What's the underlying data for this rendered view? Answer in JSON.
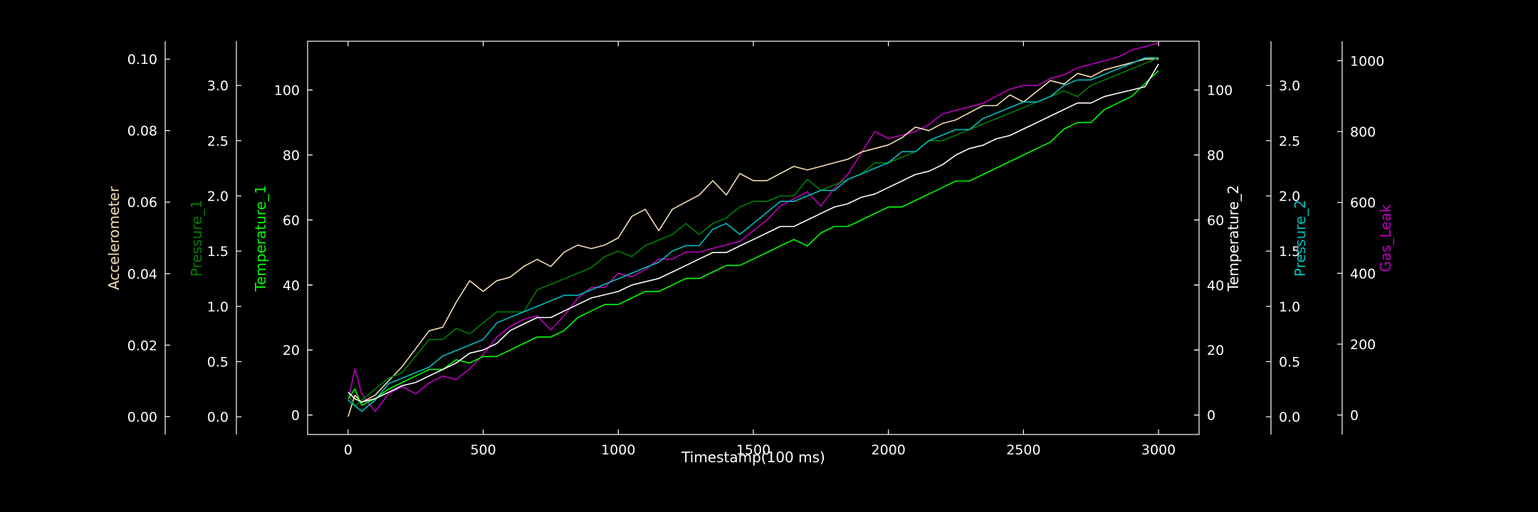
{
  "chart_data": {
    "type": "line",
    "title": "",
    "xlabel": "Timestamp(100 ms)",
    "xlim": [
      -150,
      3150
    ],
    "xticks": [
      0,
      500,
      1000,
      1500,
      2000,
      2500,
      3000
    ],
    "grid": false,
    "legend": "none",
    "background": "#000000",
    "axes": [
      {
        "id": "accel",
        "label": "Accelerometer",
        "side": "left",
        "color": "#f5deb3",
        "ylim": [
          -0.005,
          0.105
        ],
        "ticks": [
          0.0,
          0.02,
          0.04,
          0.06,
          0.08,
          0.1
        ],
        "tick_labels": [
          "0.00",
          "0.02",
          "0.04",
          "0.06",
          "0.08",
          "0.10"
        ]
      },
      {
        "id": "press1",
        "label": "Pressure_1",
        "side": "left",
        "color": "#008000",
        "ylim": [
          -0.16,
          3.4
        ],
        "ticks": [
          0.0,
          0.5,
          1.0,
          1.5,
          2.0,
          2.5,
          3.0
        ],
        "tick_labels": [
          "0.0",
          "0.5",
          "1.0",
          "1.5",
          "2.0",
          "2.5",
          "3.0"
        ]
      },
      {
        "id": "temp1",
        "label": "Temperature_1",
        "side": "left",
        "color": "#00ff00",
        "ylim": [
          -6,
          115
        ],
        "ticks": [
          0,
          20,
          40,
          60,
          80,
          100
        ],
        "tick_labels": [
          "0",
          "20",
          "40",
          "60",
          "80",
          "100"
        ]
      },
      {
        "id": "temp2",
        "label": "Temperature_2",
        "side": "right",
        "color": "#ffffff",
        "ylim": [
          -6,
          115
        ],
        "ticks": [
          0,
          20,
          40,
          60,
          80,
          100
        ],
        "tick_labels": [
          "0",
          "20",
          "40",
          "60",
          "80",
          "100"
        ]
      },
      {
        "id": "press2",
        "label": "Pressure_2",
        "side": "right",
        "color": "#00bfbf",
        "ylim": [
          -0.16,
          3.4
        ],
        "ticks": [
          0.0,
          0.5,
          1.0,
          1.5,
          2.0,
          2.5,
          3.0
        ],
        "tick_labels": [
          "0.0",
          "0.5",
          "1.0",
          "1.5",
          "2.0",
          "2.5",
          "3.0"
        ]
      },
      {
        "id": "gas",
        "label": "Gas_Leak",
        "side": "right",
        "color": "#bf00bf",
        "ylim": [
          -55,
          1055
        ],
        "ticks": [
          0,
          200,
          400,
          600,
          800,
          1000
        ],
        "tick_labels": [
          "0",
          "200",
          "400",
          "600",
          "800",
          "1000"
        ]
      }
    ],
    "series": [
      {
        "axis": "gas",
        "color": "#bf00bf",
        "x": [
          0,
          25,
          50,
          100,
          150,
          200,
          250,
          300,
          350,
          400,
          450,
          500,
          550,
          600,
          650,
          700,
          750,
          800,
          850,
          900,
          950,
          1000,
          1050,
          1100,
          1150,
          1200,
          1250,
          1300,
          1350,
          1400,
          1450,
          1500,
          1550,
          1600,
          1650,
          1700,
          1750,
          1800,
          1850,
          1900,
          1950,
          2000,
          2050,
          2100,
          2150,
          2200,
          2250,
          2300,
          2350,
          2400,
          2450,
          2500,
          2550,
          2600,
          2650,
          2700,
          2750,
          2800,
          2850,
          2900,
          2950,
          3000
        ],
        "y": [
          40,
          130,
          60,
          10,
          60,
          80,
          60,
          90,
          110,
          100,
          130,
          170,
          220,
          250,
          270,
          280,
          240,
          280,
          330,
          360,
          360,
          400,
          390,
          410,
          440,
          440,
          460,
          460,
          470,
          480,
          490,
          520,
          550,
          590,
          610,
          630,
          590,
          640,
          680,
          740,
          800,
          780,
          790,
          800,
          820,
          850,
          860,
          870,
          880,
          900,
          920,
          930,
          930,
          950,
          960,
          980,
          990,
          1000,
          1010,
          1030,
          1040,
          1050
        ]
      },
      {
        "axis": "accel",
        "color": "#f5deb3",
        "x": [
          0,
          25,
          50,
          100,
          150,
          200,
          250,
          300,
          350,
          400,
          450,
          500,
          550,
          600,
          650,
          700,
          750,
          800,
          850,
          900,
          950,
          1000,
          1050,
          1100,
          1150,
          1200,
          1250,
          1300,
          1350,
          1400,
          1450,
          1500,
          1550,
          1600,
          1650,
          1700,
          1750,
          1800,
          1850,
          1900,
          1950,
          2000,
          2050,
          2100,
          2150,
          2200,
          2250,
          2300,
          2350,
          2400,
          2450,
          2500,
          2550,
          2600,
          2650,
          2700,
          2750,
          2800,
          2850,
          2900,
          2950,
          3000
        ],
        "y": [
          0.0,
          0.006,
          0.004,
          0.006,
          0.01,
          0.014,
          0.019,
          0.024,
          0.025,
          0.032,
          0.038,
          0.035,
          0.038,
          0.039,
          0.042,
          0.044,
          0.042,
          0.046,
          0.048,
          0.047,
          0.048,
          0.05,
          0.056,
          0.058,
          0.052,
          0.058,
          0.06,
          0.062,
          0.066,
          0.062,
          0.068,
          0.066,
          0.066,
          0.068,
          0.07,
          0.069,
          0.07,
          0.071,
          0.072,
          0.074,
          0.075,
          0.076,
          0.078,
          0.081,
          0.08,
          0.082,
          0.083,
          0.085,
          0.087,
          0.087,
          0.09,
          0.088,
          0.091,
          0.094,
          0.093,
          0.096,
          0.095,
          0.097,
          0.098,
          0.099,
          0.1,
          0.1
        ]
      },
      {
        "axis": "press1",
        "color": "#008000",
        "x": [
          0,
          25,
          50,
          100,
          150,
          200,
          250,
          300,
          350,
          400,
          450,
          500,
          550,
          600,
          650,
          700,
          750,
          800,
          850,
          900,
          950,
          1000,
          1050,
          1100,
          1150,
          1200,
          1250,
          1300,
          1350,
          1400,
          1450,
          1500,
          1550,
          1600,
          1650,
          1700,
          1750,
          1800,
          1850,
          1900,
          1950,
          2000,
          2050,
          2100,
          2150,
          2200,
          2250,
          2300,
          2350,
          2400,
          2450,
          2500,
          2550,
          2600,
          2650,
          2700,
          2750,
          2800,
          2850,
          2900,
          2950,
          3000
        ],
        "y": [
          0.2,
          0.1,
          0.15,
          0.25,
          0.35,
          0.4,
          0.55,
          0.7,
          0.7,
          0.8,
          0.75,
          0.85,
          0.95,
          0.95,
          0.95,
          1.15,
          1.2,
          1.25,
          1.3,
          1.35,
          1.45,
          1.5,
          1.45,
          1.55,
          1.6,
          1.65,
          1.75,
          1.65,
          1.75,
          1.8,
          1.9,
          1.95,
          1.95,
          2.0,
          2.0,
          2.15,
          2.05,
          2.1,
          2.15,
          2.2,
          2.3,
          2.3,
          2.35,
          2.4,
          2.5,
          2.5,
          2.55,
          2.6,
          2.65,
          2.7,
          2.75,
          2.8,
          2.85,
          2.9,
          2.95,
          2.9,
          3.0,
          3.05,
          3.1,
          3.15,
          3.2,
          3.25
        ]
      },
      {
        "axis": "temp1",
        "color": "#00ff00",
        "x": [
          0,
          25,
          50,
          100,
          150,
          200,
          250,
          300,
          350,
          400,
          450,
          500,
          550,
          600,
          650,
          700,
          750,
          800,
          850,
          900,
          950,
          1000,
          1050,
          1100,
          1150,
          1200,
          1250,
          1300,
          1350,
          1400,
          1450,
          1500,
          1550,
          1600,
          1650,
          1700,
          1750,
          1800,
          1850,
          1900,
          1950,
          2000,
          2050,
          2100,
          2150,
          2200,
          2250,
          2300,
          2350,
          2400,
          2450,
          2500,
          2550,
          2600,
          2650,
          2700,
          2750,
          2800,
          2850,
          2900,
          2950,
          3000
        ],
        "y": [
          5,
          8,
          3,
          5,
          8,
          10,
          12,
          14,
          14,
          17,
          16,
          18,
          18,
          20,
          22,
          24,
          24,
          26,
          30,
          32,
          34,
          34,
          36,
          38,
          38,
          40,
          42,
          42,
          44,
          46,
          46,
          48,
          50,
          52,
          54,
          52,
          56,
          58,
          58,
          60,
          62,
          64,
          64,
          66,
          68,
          70,
          72,
          72,
          74,
          76,
          78,
          80,
          82,
          84,
          88,
          90,
          90,
          94,
          96,
          98,
          102,
          106
        ]
      },
      {
        "axis": "press2",
        "color": "#00bfbf",
        "x": [
          0,
          25,
          50,
          100,
          150,
          200,
          250,
          300,
          350,
          400,
          450,
          500,
          550,
          600,
          650,
          700,
          750,
          800,
          850,
          900,
          950,
          1000,
          1050,
          1100,
          1150,
          1200,
          1250,
          1300,
          1350,
          1400,
          1450,
          1500,
          1550,
          1600,
          1650,
          1700,
          1750,
          1800,
          1850,
          1900,
          1950,
          2000,
          2050,
          2100,
          2150,
          2200,
          2250,
          2300,
          2350,
          2400,
          2450,
          2500,
          2550,
          2600,
          2650,
          2700,
          2750,
          2800,
          2850,
          2900,
          2950,
          3000
        ],
        "y": [
          0.15,
          0.1,
          0.05,
          0.15,
          0.3,
          0.35,
          0.4,
          0.45,
          0.55,
          0.6,
          0.65,
          0.7,
          0.85,
          0.9,
          0.95,
          1.0,
          1.05,
          1.1,
          1.1,
          1.15,
          1.2,
          1.25,
          1.3,
          1.35,
          1.4,
          1.5,
          1.55,
          1.55,
          1.7,
          1.75,
          1.65,
          1.75,
          1.85,
          1.95,
          1.95,
          2.0,
          2.05,
          2.05,
          2.15,
          2.2,
          2.25,
          2.3,
          2.4,
          2.4,
          2.5,
          2.55,
          2.6,
          2.6,
          2.7,
          2.75,
          2.8,
          2.85,
          2.85,
          2.9,
          3.0,
          3.05,
          3.05,
          3.1,
          3.15,
          3.2,
          3.25,
          3.25
        ]
      },
      {
        "axis": "temp2",
        "color": "#ffffff",
        "x": [
          0,
          25,
          50,
          100,
          150,
          200,
          250,
          300,
          350,
          400,
          450,
          500,
          550,
          600,
          650,
          700,
          750,
          800,
          850,
          900,
          950,
          1000,
          1050,
          1100,
          1150,
          1200,
          1250,
          1300,
          1350,
          1400,
          1450,
          1500,
          1550,
          1600,
          1650,
          1700,
          1750,
          1800,
          1850,
          1900,
          1950,
          2000,
          2050,
          2100,
          2150,
          2200,
          2250,
          2300,
          2350,
          2400,
          2450,
          2500,
          2550,
          2600,
          2650,
          2700,
          2750,
          2800,
          2850,
          2900,
          2950,
          3000
        ],
        "y": [
          7,
          5,
          4,
          5,
          7,
          9,
          10,
          12,
          14,
          16,
          19,
          20,
          22,
          26,
          28,
          30,
          30,
          32,
          34,
          36,
          37,
          38,
          40,
          41,
          42,
          44,
          46,
          48,
          50,
          50,
          52,
          54,
          56,
          58,
          58,
          60,
          62,
          64,
          65,
          67,
          68,
          70,
          72,
          74,
          75,
          77,
          80,
          82,
          83,
          85,
          86,
          88,
          90,
          92,
          94,
          96,
          96,
          98,
          99,
          100,
          101,
          108
        ]
      }
    ]
  }
}
